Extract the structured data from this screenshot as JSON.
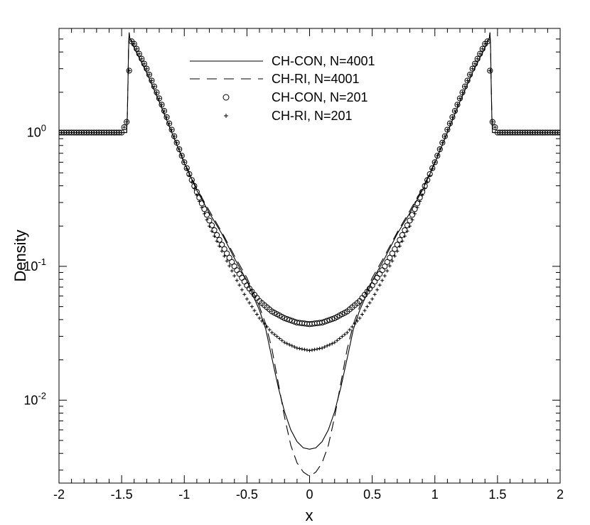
{
  "chart_data": {
    "type": "line",
    "title": "",
    "xlabel": "x",
    "ylabel": "Density",
    "xlim": [
      -2,
      2
    ],
    "ylim": [
      0.0024,
      6.0
    ],
    "yscale": "log",
    "grid": false,
    "legend_position": "top-center",
    "x_ticks": [
      -2,
      -1.5,
      -1,
      -0.5,
      0,
      0.5,
      1,
      1.5,
      2
    ],
    "x_tick_labels": [
      "-2",
      "-1.5",
      "-1",
      "-0.5",
      "0",
      "0.5",
      "1",
      "1.5",
      "2"
    ],
    "y_ticks": [
      {
        "value": 1,
        "base": "10",
        "exp": "0"
      },
      {
        "value": 0.1,
        "base": "10",
        "exp": "-1"
      },
      {
        "value": 0.01,
        "base": "10",
        "exp": "-2"
      }
    ],
    "series": [
      {
        "name": "CH-CON, N=4001",
        "style": "solid",
        "x": [
          -2,
          -1.46,
          -1.455,
          -1.45,
          -1.445,
          -1.44,
          -1.435,
          -1.4,
          -1.3,
          -1.2,
          -1.1,
          -1.0,
          -0.9,
          -0.8,
          -0.7,
          -0.6,
          -0.5,
          -0.45,
          -0.4,
          -0.35,
          -0.3,
          -0.25,
          -0.2,
          -0.15,
          -0.1,
          -0.05,
          0,
          0.05,
          0.1,
          0.15,
          0.2,
          0.25,
          0.3,
          0.35,
          0.4,
          0.45,
          0.5,
          0.6,
          0.7,
          0.8,
          0.9,
          1.0,
          1.1,
          1.2,
          1.3,
          1.4,
          1.435,
          1.44,
          1.445,
          1.45,
          1.455,
          1.46,
          2
        ],
        "y": [
          1.0,
          1.0,
          1.3,
          2.2,
          4.2,
          5.6,
          5.1,
          4.3,
          2.8,
          1.7,
          1.0,
          0.59,
          0.37,
          0.25,
          0.175,
          0.115,
          0.078,
          0.06,
          0.047,
          0.034,
          0.0205,
          0.0125,
          0.0082,
          0.006,
          0.0049,
          0.0044,
          0.0043,
          0.0044,
          0.0049,
          0.006,
          0.0082,
          0.0125,
          0.0205,
          0.034,
          0.047,
          0.06,
          0.078,
          0.115,
          0.175,
          0.25,
          0.37,
          0.59,
          1.0,
          1.7,
          2.8,
          4.3,
          5.1,
          5.6,
          4.2,
          2.2,
          1.3,
          1.0,
          1.0
        ]
      },
      {
        "name": "CH-RI, N=4001",
        "style": "dashed",
        "x": [
          -2,
          -1.46,
          -1.455,
          -1.45,
          -1.445,
          -1.44,
          -1.435,
          -1.4,
          -1.3,
          -1.2,
          -1.1,
          -1.0,
          -0.9,
          -0.8,
          -0.7,
          -0.6,
          -0.5,
          -0.45,
          -0.4,
          -0.35,
          -0.3,
          -0.25,
          -0.2,
          -0.15,
          -0.1,
          -0.05,
          0,
          0.05,
          0.1,
          0.15,
          0.2,
          0.25,
          0.3,
          0.35,
          0.4,
          0.45,
          0.5,
          0.6,
          0.7,
          0.8,
          0.9,
          1.0,
          1.1,
          1.2,
          1.3,
          1.4,
          1.435,
          1.44,
          1.445,
          1.45,
          1.455,
          1.46,
          2
        ],
        "y": [
          1.0,
          1.0,
          1.3,
          2.2,
          4.2,
          5.6,
          5.1,
          4.3,
          2.8,
          1.7,
          1.0,
          0.6,
          0.38,
          0.26,
          0.18,
          0.12,
          0.082,
          0.064,
          0.05,
          0.037,
          0.024,
          0.0135,
          0.0075,
          0.0046,
          0.0034,
          0.0029,
          0.0027,
          0.0029,
          0.0034,
          0.0046,
          0.0075,
          0.0135,
          0.024,
          0.037,
          0.05,
          0.064,
          0.082,
          0.12,
          0.18,
          0.26,
          0.38,
          0.6,
          1.0,
          1.7,
          2.8,
          4.3,
          5.1,
          5.6,
          4.2,
          2.2,
          1.3,
          1.0,
          1.0
        ]
      },
      {
        "name": "CH-CON, N=201",
        "style": "circle",
        "x": [
          -2,
          -1.6,
          -1.5,
          -1.46,
          -1.44,
          -1.42,
          -1.4,
          -1.3,
          -1.2,
          -1.1,
          -1.0,
          -0.9,
          -0.8,
          -0.7,
          -0.6,
          -0.5,
          -0.4,
          -0.3,
          -0.2,
          -0.1,
          0,
          0.1,
          0.2,
          0.3,
          0.4,
          0.5,
          0.6,
          0.7,
          0.8,
          0.9,
          1.0,
          1.1,
          1.2,
          1.3,
          1.4,
          1.42,
          1.44,
          1.46,
          1.5,
          1.6,
          2
        ],
        "y": [
          1.0,
          1.0,
          1.0,
          1.2,
          2.9,
          4.8,
          4.6,
          3.0,
          1.8,
          1.05,
          0.6,
          0.36,
          0.22,
          0.145,
          0.1,
          0.072,
          0.055,
          0.046,
          0.041,
          0.038,
          0.037,
          0.038,
          0.041,
          0.046,
          0.055,
          0.072,
          0.1,
          0.145,
          0.22,
          0.36,
          0.6,
          1.05,
          1.8,
          3.0,
          4.6,
          4.8,
          2.9,
          1.2,
          1.0,
          1.0,
          1.0
        ]
      },
      {
        "name": "CH-RI, N=201",
        "style": "plus",
        "x": [
          -2,
          -1.6,
          -1.5,
          -1.46,
          -1.44,
          -1.42,
          -1.4,
          -1.3,
          -1.2,
          -1.1,
          -1.0,
          -0.9,
          -0.8,
          -0.7,
          -0.6,
          -0.5,
          -0.4,
          -0.3,
          -0.2,
          -0.1,
          0,
          0.1,
          0.2,
          0.3,
          0.4,
          0.5,
          0.6,
          0.7,
          0.8,
          0.9,
          1.0,
          1.1,
          1.2,
          1.3,
          1.4,
          1.42,
          1.44,
          1.46,
          1.5,
          1.6,
          2
        ],
        "y": [
          1.0,
          1.0,
          1.0,
          1.2,
          2.9,
          4.8,
          4.6,
          3.0,
          1.8,
          1.05,
          0.6,
          0.34,
          0.2,
          0.13,
          0.085,
          0.057,
          0.041,
          0.032,
          0.027,
          0.0245,
          0.0235,
          0.0245,
          0.027,
          0.032,
          0.041,
          0.057,
          0.085,
          0.13,
          0.2,
          0.34,
          0.6,
          1.05,
          1.8,
          3.0,
          4.6,
          4.8,
          2.9,
          1.2,
          1.0,
          1.0,
          1.0
        ]
      }
    ]
  }
}
